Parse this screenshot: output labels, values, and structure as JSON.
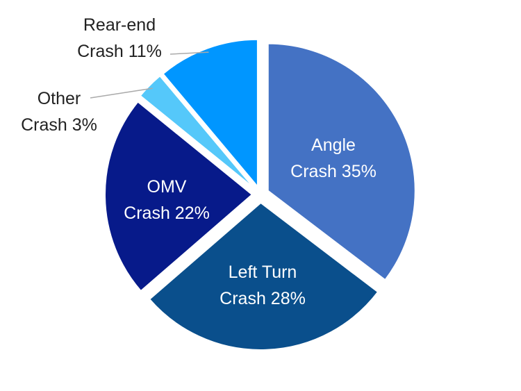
{
  "chart_data": {
    "type": "pie",
    "start_angle_deg": 0,
    "direction": "clockwise",
    "exploded": true,
    "slices": [
      {
        "lines": [
          "Angle",
          "Crash 35%"
        ],
        "category": "Angle Crash",
        "value": 35,
        "color": "#4472C4",
        "label_color": "#ffffff",
        "label_position": "inside"
      },
      {
        "lines": [
          "Left Turn",
          "Crash 28%"
        ],
        "category": "Left Turn Crash",
        "value": 28,
        "color": "#0A4F8C",
        "label_color": "#ffffff",
        "label_position": "inside"
      },
      {
        "lines": [
          "OMV",
          "Crash 22%"
        ],
        "category": "OMV Crash",
        "value": 22,
        "color": "#071A8A",
        "label_color": "#ffffff",
        "label_position": "inside"
      },
      {
        "lines": [
          "Other",
          "Crash 3%"
        ],
        "category": "Other Crash",
        "value": 3,
        "color": "#55C8FA",
        "label_color": "#222222",
        "label_position": "outside"
      },
      {
        "lines": [
          "Rear-end",
          "Crash 11%"
        ],
        "category": "Rear-end Crash",
        "value": 11,
        "color": "#0096FF",
        "label_color": "#222222",
        "label_position": "outside"
      }
    ]
  }
}
